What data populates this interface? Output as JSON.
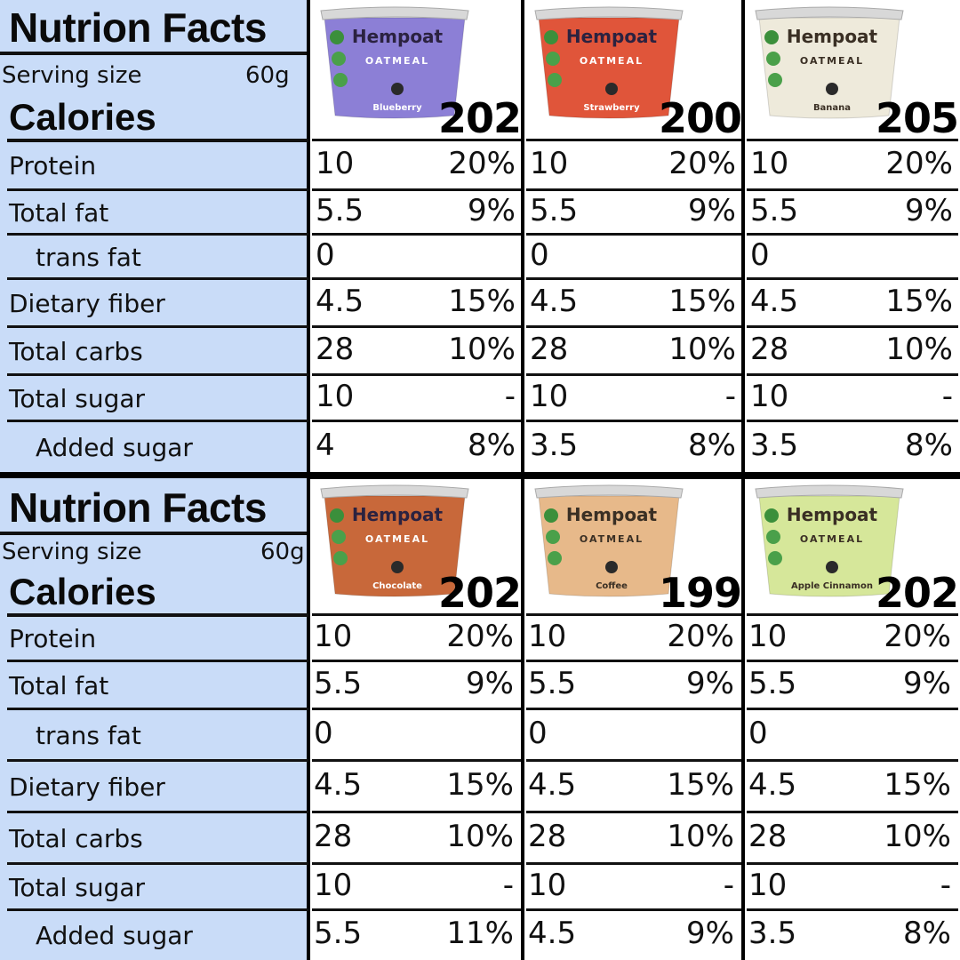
{
  "labels": {
    "title": "Nutrion Facts",
    "serving_size": "Serving size",
    "serving_value": "60g",
    "calories": "Calories",
    "rows": [
      "Protein",
      "Total fat",
      "trans fat",
      "Dietary fiber",
      "Total carbs",
      "Total sugar",
      "Added sugar"
    ]
  },
  "brand": {
    "name": "Hempoat",
    "sub": "OATMEAL"
  },
  "panels": [
    {
      "products": [
        {
          "flavor": "Blueberry",
          "calories": "202",
          "color": "#8c7fd6",
          "values": [
            [
              "10",
              "20%"
            ],
            [
              "5.5",
              "9%"
            ],
            [
              "0",
              ""
            ],
            [
              "4.5",
              "15%"
            ],
            [
              "28",
              "10%"
            ],
            [
              "10",
              "-"
            ],
            [
              "4",
              "8%"
            ]
          ]
        },
        {
          "flavor": "Strawberry",
          "calories": "200",
          "color": "#e0553a",
          "values": [
            [
              "10",
              "20%"
            ],
            [
              "5.5",
              "9%"
            ],
            [
              "0",
              ""
            ],
            [
              "4.5",
              "15%"
            ],
            [
              "28",
              "10%"
            ],
            [
              "10",
              "-"
            ],
            [
              "3.5",
              "8%"
            ]
          ]
        },
        {
          "flavor": "Banana",
          "calories": "205",
          "color": "#eeeadb",
          "values": [
            [
              "10",
              "20%"
            ],
            [
              "5.5",
              "9%"
            ],
            [
              "0",
              ""
            ],
            [
              "4.5",
              "15%"
            ],
            [
              "28",
              "10%"
            ],
            [
              "10",
              "-"
            ],
            [
              "3.5",
              "8%"
            ]
          ]
        }
      ]
    },
    {
      "products": [
        {
          "flavor": "Chocolate",
          "calories": "202",
          "color": "#c8683a",
          "values": [
            [
              "10",
              "20%"
            ],
            [
              "5.5",
              "9%"
            ],
            [
              "0",
              ""
            ],
            [
              "4.5",
              "15%"
            ],
            [
              "28",
              "10%"
            ],
            [
              "10",
              "-"
            ],
            [
              "5.5",
              "11%"
            ]
          ]
        },
        {
          "flavor": "Coffee",
          "calories": "199",
          "color": "#e7b98a",
          "values": [
            [
              "10",
              "20%"
            ],
            [
              "5.5",
              "9%"
            ],
            [
              "0",
              ""
            ],
            [
              "4.5",
              "15%"
            ],
            [
              "28",
              "10%"
            ],
            [
              "10",
              "-"
            ],
            [
              "4.5",
              "9%"
            ]
          ]
        },
        {
          "flavor": "Apple Cinnamon",
          "calories": "202",
          "color": "#d6e79a",
          "values": [
            [
              "10",
              "20%"
            ],
            [
              "5.5",
              "9%"
            ],
            [
              "0",
              ""
            ],
            [
              "4.5",
              "15%"
            ],
            [
              "28",
              "10%"
            ],
            [
              "10",
              "-"
            ],
            [
              "3.5",
              "8%"
            ]
          ]
        }
      ]
    }
  ]
}
